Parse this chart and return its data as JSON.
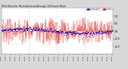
{
  "title": "Wind Direction  Normalized and Average (24 Hours) (New)",
  "bg_color": "#d8d8d8",
  "plot_bg": "#ffffff",
  "bar_color": "#dd0000",
  "avg_color": "#0000bb",
  "legend_blue_label": "Normalized",
  "legend_red_label": "Average",
  "legend_blue_color": "#0000bb",
  "legend_red_color": "#dd0000",
  "n_points": 288,
  "y_min": -1.5,
  "y_max": 1.5,
  "y_ticks": [
    -1.0,
    -0.5,
    0.0,
    0.5,
    1.0
  ],
  "seed": 7
}
